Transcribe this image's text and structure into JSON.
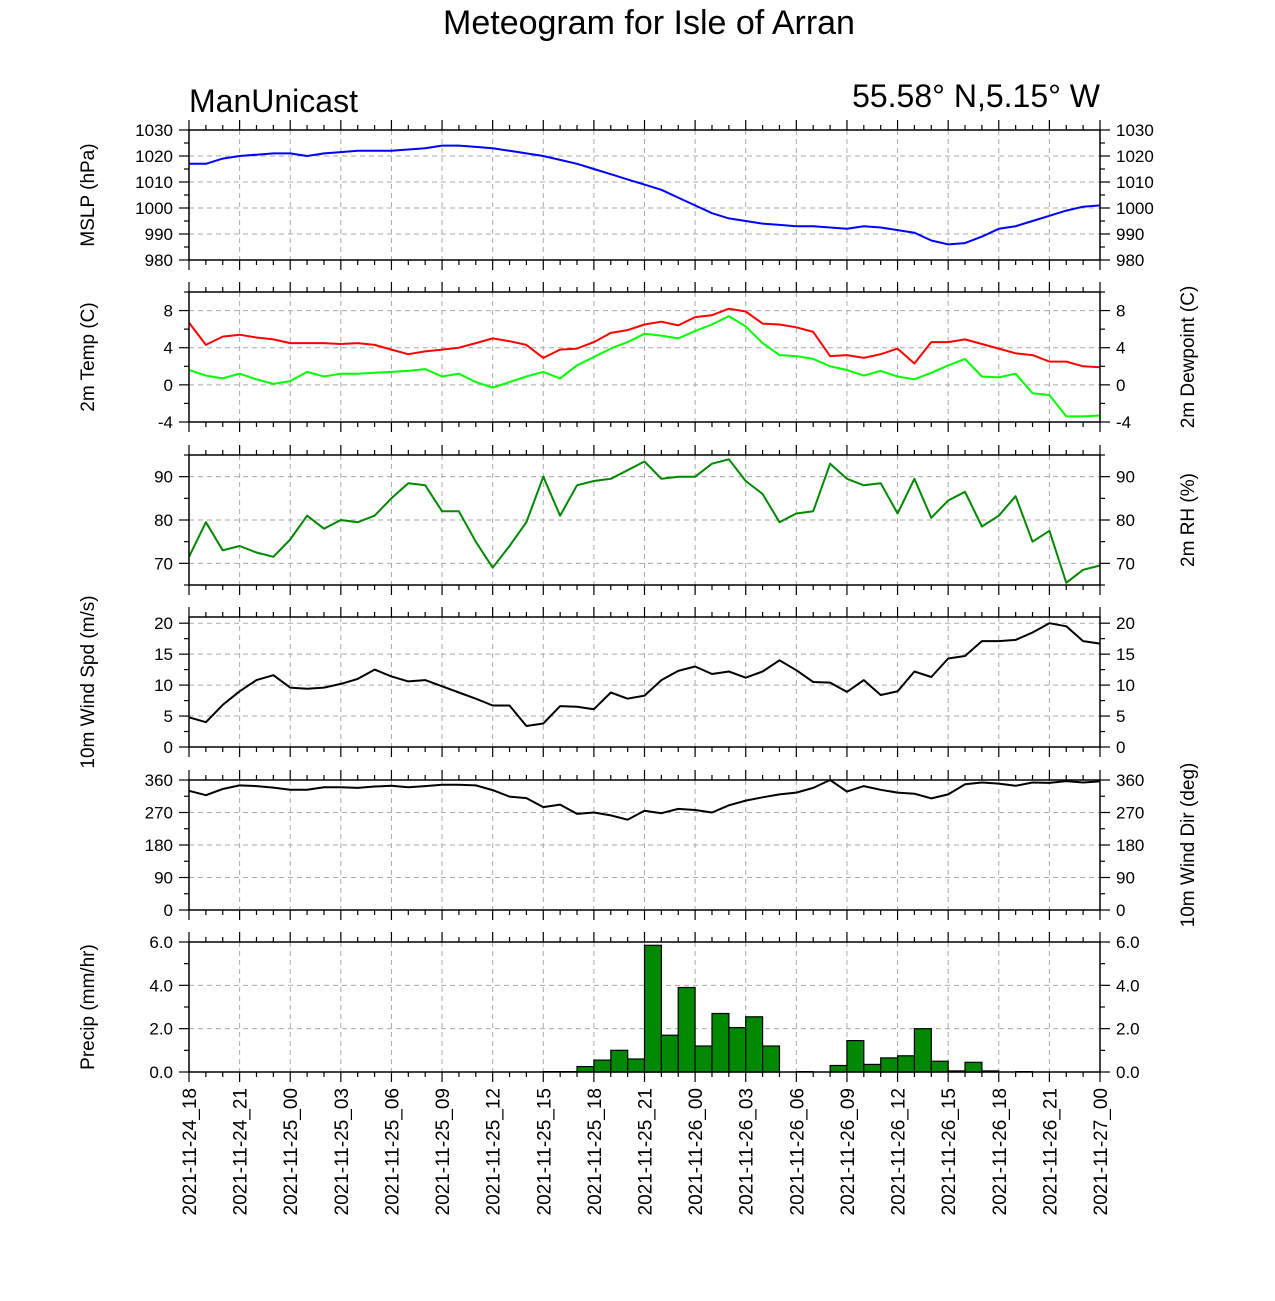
{
  "title": "Meteogram for Isle of Arran",
  "source_label": "ManUnicast",
  "location_label": "55.58° N,5.15° W",
  "x_axis": {
    "tick_labels": [
      "2021-11-24_18",
      "2021-11-24_21",
      "2021-11-25_00",
      "2021-11-25_03",
      "2021-11-25_06",
      "2021-11-25_09",
      "2021-11-25_12",
      "2021-11-25_15",
      "2021-11-25_18",
      "2021-11-25_21",
      "2021-11-26_00",
      "2021-11-26_03",
      "2021-11-26_06",
      "2021-11-26_09",
      "2021-11-26_12",
      "2021-11-26_15",
      "2021-11-26_18",
      "2021-11-26_21",
      "2021-11-27_00"
    ],
    "grid": true
  },
  "colors": {
    "mslp": "#0000ff",
    "temp": "#ff0000",
    "dewpoint": "#00ff00",
    "rh": "#008800",
    "wind": "#000000",
    "precip_fill": "#008800",
    "grid": "#aaaaaa"
  },
  "chart_data": [
    {
      "type": "line",
      "ylabel": "MSLP (hPa)",
      "ylim": [
        980,
        1030
      ],
      "yticks": [
        980,
        990,
        1000,
        1010,
        1020,
        1030
      ],
      "y_tick_labels": [
        "980",
        "990",
        "1000",
        "1010",
        "1020",
        "1030"
      ],
      "right_ticks": true,
      "series": [
        {
          "color_key": "mslp",
          "values": [
            1017,
            1017,
            1019,
            1020,
            1020.5,
            1021,
            1021,
            1020,
            1021,
            1021.5,
            1022,
            1022,
            1022,
            1022.5,
            1023,
            1024,
            1024,
            1023.5,
            1023,
            1022,
            1021,
            1020,
            1018.5,
            1017,
            1015,
            1013,
            1011,
            1009,
            1007,
            1004,
            1001,
            998,
            996,
            995,
            994,
            993.5,
            993,
            993,
            992.5,
            992,
            993,
            992.5,
            991.5,
            990.5,
            987.5,
            986,
            986.5,
            989,
            992,
            993,
            995,
            997,
            999,
            1000.5,
            1001
          ]
        }
      ]
    },
    {
      "type": "line",
      "ylabel": "2m Temp (C)",
      "ylabel_right": "2m Dewpoint (C)",
      "ylim": [
        -4,
        10
      ],
      "yticks": [
        -4,
        0,
        4,
        8
      ],
      "y_tick_labels": [
        "-4",
        "0",
        "4",
        "8"
      ],
      "right_ticks": true,
      "series": [
        {
          "color_key": "temp",
          "values": [
            6.7,
            4.3,
            5.2,
            5.4,
            5.1,
            4.9,
            4.5,
            4.5,
            4.5,
            4.4,
            4.5,
            4.3,
            3.8,
            3.3,
            3.6,
            3.8,
            4.0,
            4.5,
            5.0,
            4.7,
            4.3,
            2.9,
            3.8,
            3.9,
            4.6,
            5.6,
            5.9,
            6.5,
            6.8,
            6.4,
            7.3,
            7.5,
            8.2,
            7.9,
            6.6,
            6.5,
            6.2,
            5.7,
            3.1,
            3.2,
            2.9,
            3.3,
            3.9,
            2.3,
            4.6,
            4.6,
            4.9,
            4.4,
            3.9,
            3.4,
            3.2,
            2.5,
            2.5,
            2.0,
            1.9
          ]
        },
        {
          "color_key": "dewpoint",
          "values": [
            1.6,
            1.0,
            0.7,
            1.2,
            0.6,
            0.1,
            0.4,
            1.4,
            0.9,
            1.2,
            1.2,
            1.3,
            1.4,
            1.5,
            1.7,
            0.9,
            1.2,
            0.3,
            -0.3,
            0.3,
            0.9,
            1.4,
            0.7,
            2.1,
            3.0,
            3.9,
            4.6,
            5.5,
            5.3,
            5.0,
            5.8,
            6.5,
            7.4,
            6.3,
            4.5,
            3.2,
            3.1,
            2.8,
            2.0,
            1.6,
            1.0,
            1.5,
            0.9,
            0.6,
            1.3,
            2.1,
            2.8,
            0.9,
            0.8,
            1.2,
            -0.9,
            -1.1,
            -3.4,
            -3.4,
            -3.3
          ]
        }
      ]
    },
    {
      "type": "line",
      "ylabel_right": "2m RH (%)",
      "ylim": [
        65,
        95
      ],
      "yticks": [
        70,
        80,
        90
      ],
      "y_tick_labels": [
        "70",
        "80",
        "90"
      ],
      "right_ticks": true,
      "series": [
        {
          "color_key": "rh",
          "values": [
            71.5,
            79.5,
            73,
            74,
            72.5,
            71.5,
            75.5,
            81,
            78,
            80,
            79.5,
            81,
            85,
            88.5,
            88,
            82,
            82,
            75,
            69,
            74,
            79.5,
            90,
            81,
            88,
            89,
            89.5,
            91.5,
            93.5,
            89.5,
            90,
            90,
            93,
            94,
            89,
            86,
            79.5,
            81.5,
            82,
            93,
            89.5,
            88,
            88.5,
            81.5,
            89.5,
            80.5,
            84.5,
            86.5,
            78.5,
            81,
            85.5,
            75,
            77.5,
            65.5,
            68.5,
            69.5
          ]
        }
      ]
    },
    {
      "type": "line",
      "ylabel": "10m Wind Spd (m/s)",
      "ylim": [
        0,
        21
      ],
      "yticks": [
        0,
        5,
        10,
        15,
        20
      ],
      "y_tick_labels": [
        "0",
        "5",
        "10",
        "15",
        "20"
      ],
      "right_ticks": true,
      "series": [
        {
          "color_key": "wind",
          "values": [
            4.8,
            4.0,
            6.8,
            9.0,
            10.8,
            11.6,
            9.6,
            9.4,
            9.6,
            10.2,
            11.0,
            12.5,
            11.4,
            10.6,
            10.8,
            9.8,
            8.8,
            7.8,
            6.7,
            6.7,
            3.4,
            3.8,
            6.6,
            6.5,
            6.1,
            8.8,
            7.8,
            8.3,
            10.8,
            12.3,
            13.0,
            11.8,
            12.2,
            11.2,
            12.2,
            14.0,
            12.4,
            10.5,
            10.4,
            8.9,
            10.8,
            8.4,
            9.0,
            12.2,
            11.3,
            14.3,
            14.7,
            17.1,
            17.1,
            17.3,
            18.5,
            20.0,
            19.5,
            17.1,
            16.7
          ]
        }
      ]
    },
    {
      "type": "line",
      "ylabel_right": "10m Wind Dir (deg)",
      "ylim": [
        0,
        360
      ],
      "yticks": [
        0,
        90,
        180,
        270,
        360
      ],
      "y_tick_labels": [
        "0",
        "90",
        "180",
        "270",
        "360"
      ],
      "right_ticks": true,
      "series": [
        {
          "color_key": "wind",
          "values": [
            330,
            318,
            335,
            345,
            343,
            339,
            333,
            333,
            340,
            340,
            338,
            342,
            344,
            340,
            343,
            347,
            347,
            345,
            332,
            314,
            310,
            285,
            292,
            266,
            270,
            262,
            250,
            275,
            268,
            280,
            277,
            270,
            290,
            303,
            312,
            320,
            325,
            338,
            365,
            328,
            343,
            333,
            325,
            322,
            309,
            320,
            348,
            353,
            350,
            344,
            353,
            352,
            357,
            353,
            356
          ]
        }
      ]
    },
    {
      "type": "bar",
      "ylabel": "Precip (mm/hr)",
      "ylim": [
        0,
        6
      ],
      "yticks": [
        0,
        2,
        4,
        6
      ],
      "y_tick_labels": [
        "0.0",
        "2.0",
        "4.0",
        "6.0"
      ],
      "right_ticks": true,
      "values": [
        0,
        0,
        0,
        0,
        0,
        0,
        0,
        0,
        0,
        0,
        0,
        0,
        0,
        0,
        0,
        0,
        0,
        0,
        0,
        0,
        0,
        0.02,
        0.02,
        0.25,
        0.55,
        1.0,
        0.6,
        5.85,
        1.7,
        3.9,
        1.2,
        2.7,
        2.05,
        2.55,
        1.2,
        0,
        0.02,
        0,
        0.3,
        1.45,
        0.35,
        0.65,
        0.75,
        2.0,
        0.5,
        0.05,
        0.45,
        0.05,
        0,
        0.02,
        0,
        0,
        0,
        0
      ]
    }
  ]
}
